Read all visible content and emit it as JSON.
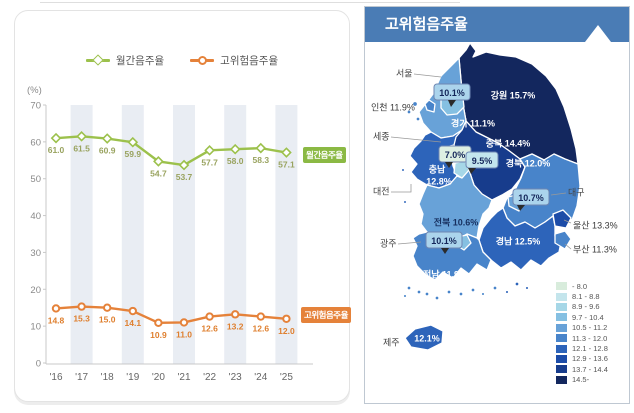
{
  "chart_data": [
    {
      "type": "line",
      "title": "",
      "categories": [
        "'16",
        "'17",
        "'18",
        "'19",
        "'20",
        "'21",
        "'22",
        "'23",
        "'24",
        "'25"
      ],
      "series": [
        {
          "name": "월간음주율",
          "values": [
            61.0,
            61.5,
            60.9,
            59.9,
            54.7,
            53.7,
            57.7,
            58.0,
            58.3,
            57.1
          ],
          "color": "#9cc14c",
          "label_color": "#99a35f",
          "marker": "diamond",
          "tag_bg": "#8bb944"
        },
        {
          "name": "고위험음주율",
          "values": [
            14.8,
            15.3,
            15.0,
            14.1,
            10.9,
            11.0,
            12.6,
            13.2,
            12.6,
            12.0
          ],
          "color": "#e5823a",
          "label_color": "#df7f2e",
          "marker": "circle",
          "tag_bg": "#e5823a"
        }
      ],
      "unit_label": "(%)",
      "ylim": [
        0,
        70
      ],
      "yticks": [
        70,
        60,
        50,
        40,
        30,
        20,
        10,
        0
      ],
      "band_indices": [
        1,
        3,
        5,
        7,
        9
      ],
      "band_color": "#e9edf3",
      "legend_position": "top",
      "grid": false
    },
    {
      "type": "choropleth",
      "title": "고위험음주율",
      "unit": "%",
      "regions": [
        {
          "id": "seoul",
          "name": "서울",
          "value": 10.1,
          "display": "10.1%",
          "color": "#85c0e2"
        },
        {
          "id": "incheon",
          "name": "인천",
          "value": 11.9,
          "map_label": "인천 11.9%",
          "color": "#4884ca"
        },
        {
          "id": "gyeonggi",
          "name": "경기",
          "value": 11.1,
          "map_label": "경기 11.1%",
          "color": "#68a2d8"
        },
        {
          "id": "gangwon",
          "name": "강원",
          "value": 15.7,
          "map_label": "강원 15.7%",
          "color": "#13275e"
        },
        {
          "id": "sejong",
          "name": "세종",
          "value": 7.0,
          "display": "7.0%",
          "color": "#d8ecdc"
        },
        {
          "id": "chungbuk",
          "name": "충북",
          "value": 14.4,
          "map_label": "충북 14.4%",
          "color": "#173c8c"
        },
        {
          "id": "chungnam",
          "name": "충남",
          "value": 12.8,
          "map_label_line1": "충남",
          "map_label_line2": "12.8%",
          "color": "#2d64ba"
        },
        {
          "id": "daejeon",
          "name": "대전",
          "value": 9.5,
          "display": "9.5%",
          "color": "#a6d7e7"
        },
        {
          "id": "gyeongbuk",
          "name": "경북",
          "value": 12.0,
          "map_label": "경북 12.0%",
          "color": "#4884ca"
        },
        {
          "id": "daegu",
          "name": "대구",
          "value": 10.7,
          "display": "10.7%",
          "color": "#68a2d8"
        },
        {
          "id": "jeonbuk",
          "name": "전북",
          "value": 10.6,
          "map_label": "전북 10.6%",
          "color": "#68a2d8"
        },
        {
          "id": "ulsan",
          "name": "울산",
          "value": 13.3,
          "map_label": "울산 13.3%",
          "color": "#1c4ca8"
        },
        {
          "id": "busan",
          "name": "부산",
          "value": 11.3,
          "map_label": "부산 11.3%",
          "color": "#4884ca"
        },
        {
          "id": "gyeongnam",
          "name": "경남",
          "value": 12.5,
          "map_label": "경남 12.5%",
          "color": "#2d64ba"
        },
        {
          "id": "gwangju",
          "name": "광주",
          "value": 10.1,
          "display": "10.1%",
          "color": "#85c0e2"
        },
        {
          "id": "jeonnam",
          "name": "전남",
          "value": 11.9,
          "map_label": "전남 11.9%",
          "color": "#4884ca"
        },
        {
          "id": "jeju",
          "name": "제주",
          "value": 12.1,
          "map_label": "12.1%",
          "color": "#2d64ba"
        }
      ],
      "legend_ranges": [
        {
          "label": "- 8.0",
          "color": "#d8ecdc"
        },
        {
          "label": "8.1 - 8.8",
          "color": "#c4e5ec"
        },
        {
          "label": "8.9 - 9.6",
          "color": "#a6d7e7"
        },
        {
          "label": "9.7 - 10.4",
          "color": "#85c0e2"
        },
        {
          "label": "10.5 - 11.2",
          "color": "#68a2d8"
        },
        {
          "label": "11.3 - 12.0",
          "color": "#4884ca"
        },
        {
          "label": "12.1 - 12.8",
          "color": "#2d64ba"
        },
        {
          "label": "12.9 - 13.6",
          "color": "#1c4ca8"
        },
        {
          "label": "13.7 - 14.4",
          "color": "#173c8c"
        },
        {
          "label": "14.5-",
          "color": "#13275e"
        }
      ]
    }
  ],
  "map_panel": {
    "header_bg": "#4a7cb5",
    "callouts": [
      {
        "region": "서울",
        "value": "10.1%",
        "fill": "#abd4ec"
      },
      {
        "region": "세종",
        "value": "7.0%",
        "fill": "#ddefe3"
      },
      {
        "region": "대전",
        "value": "9.5%",
        "fill": "#c3e6ee"
      },
      {
        "region": "대구",
        "value": "10.7%",
        "fill": "#abd4ec"
      },
      {
        "region": "광주",
        "value": "10.1%",
        "fill": "#abd4ec"
      }
    ],
    "outside_labels": [
      "서울",
      "세종",
      "대전",
      "대구",
      "광주",
      "제주"
    ]
  }
}
